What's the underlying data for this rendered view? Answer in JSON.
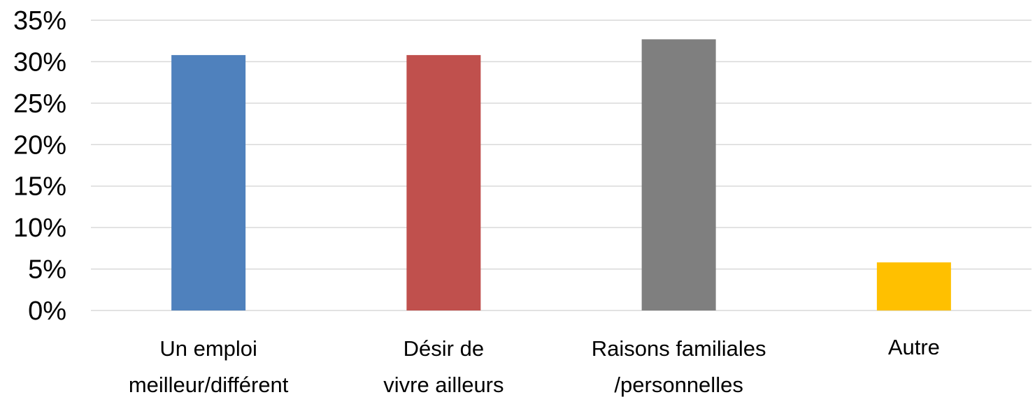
{
  "chart_data": {
    "type": "bar",
    "title": "",
    "xlabel": "",
    "ylabel": "",
    "ylim": [
      0,
      35
    ],
    "yticks": [
      "0%",
      "5%",
      "10%",
      "15%",
      "20%",
      "25%",
      "30%",
      "35%"
    ],
    "grid": true,
    "categories": [
      [
        "Un emploi",
        "meilleur/différent"
      ],
      [
        "Désir de",
        "vivre ailleurs"
      ],
      [
        "Raisons familiales",
        "/personnelles"
      ],
      [
        "Autre"
      ]
    ],
    "values": [
      30.8,
      30.8,
      32.7,
      5.8
    ],
    "colors": [
      "#4f81bd",
      "#c0504d",
      "#7f7f7f",
      "#ffc000"
    ]
  }
}
